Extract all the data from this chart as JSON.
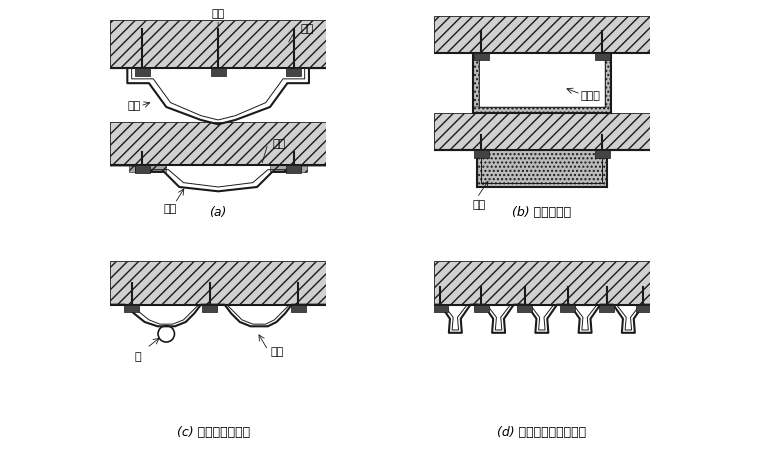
{
  "bg_color": "#ffffff",
  "line_color": "#1a1a1a",
  "label_fontsize": 8,
  "caption_fontsize": 9,
  "ann_a_maozhuang": "锚栓",
  "ann_a_chenshu": "衬砌",
  "ann_a_guancai": "管材",
  "ann_a_bancai": "板材",
  "ann_a_jiaju": "夹具",
  "ann_b_gerecai": "隔热材",
  "ann_b_jiaju": "夹具",
  "ann_c_guan": "管",
  "ann_c_zhucai": "槽材",
  "cap_a": "(a)",
  "cap_b": "(b) 使用隔热材",
  "cap_c": "(c) 管内可能清扫者",
  "cap_d": "(d) 管并列呈面状导水者"
}
